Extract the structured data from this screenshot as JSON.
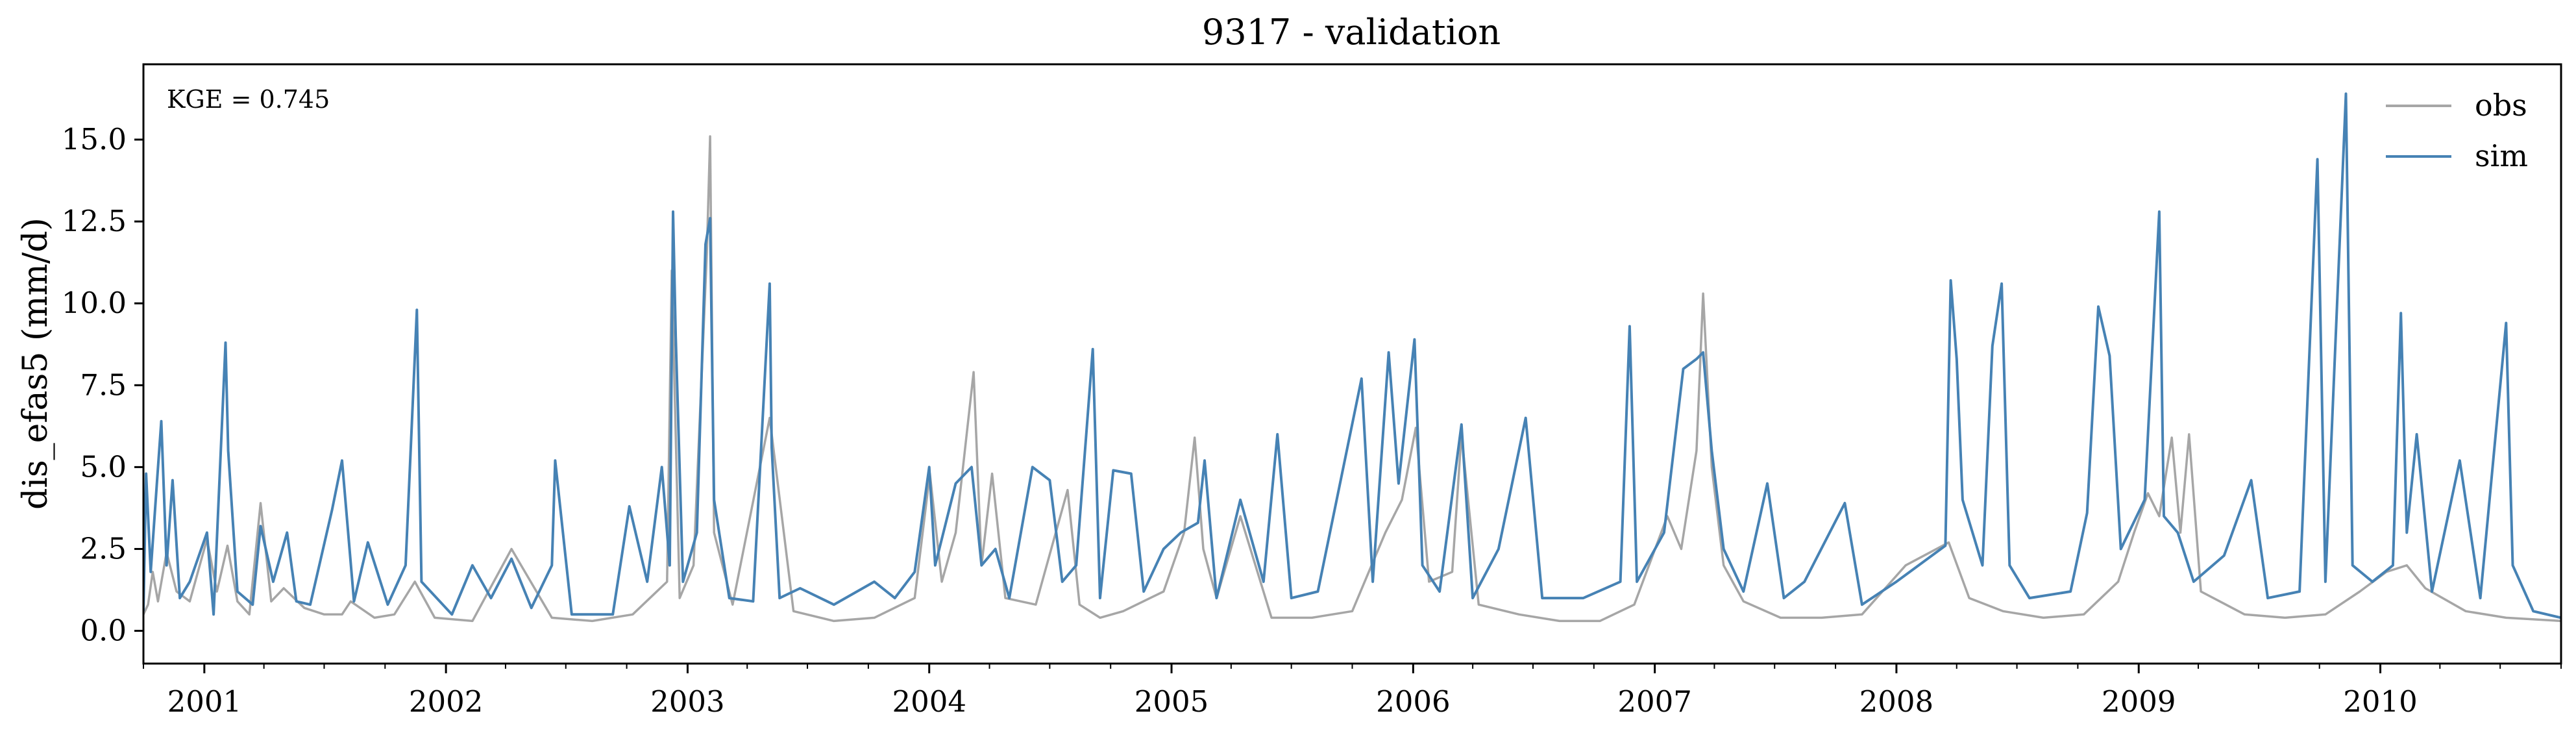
{
  "chart_data": {
    "type": "line",
    "title": "9317 - validation",
    "xlabel": "",
    "ylabel": "dis_efas5 (mm/d)",
    "annotation": "KGE = 0.745",
    "xlim": [
      "2000-10-01",
      "2010-10-01"
    ],
    "ylim": [
      -1.0,
      17.3
    ],
    "xticks": [
      "2001",
      "2002",
      "2003",
      "2004",
      "2005",
      "2006",
      "2007",
      "2008",
      "2009",
      "2010"
    ],
    "yticks": [
      "0.0",
      "2.5",
      "5.0",
      "7.5",
      "10.0",
      "12.5",
      "15.0"
    ],
    "legend": {
      "position": "top-right",
      "entries": [
        "obs",
        "sim"
      ]
    },
    "grid": false,
    "colors": {
      "obs": "#a6a6a6",
      "sim": "#4682b4"
    },
    "series": [
      {
        "name": "obs",
        "points": [
          [
            "2000-10-01",
            0.5
          ],
          [
            "2000-10-08",
            0.8
          ],
          [
            "2000-10-15",
            1.8
          ],
          [
            "2000-10-23",
            0.9
          ],
          [
            "2000-11-05",
            2.4
          ],
          [
            "2000-11-20",
            1.2
          ],
          [
            "2000-12-10",
            0.9
          ],
          [
            "2001-01-05",
            2.8
          ],
          [
            "2001-01-20",
            1.2
          ],
          [
            "2001-02-05",
            2.6
          ],
          [
            "2001-02-20",
            0.9
          ],
          [
            "2001-03-10",
            0.5
          ],
          [
            "2001-03-27",
            3.9
          ],
          [
            "2001-04-12",
            0.9
          ],
          [
            "2001-05-01",
            1.3
          ],
          [
            "2001-06-01",
            0.7
          ],
          [
            "2001-07-01",
            0.5
          ],
          [
            "2001-07-28",
            0.5
          ],
          [
            "2001-08-10",
            0.9
          ],
          [
            "2001-09-15",
            0.4
          ],
          [
            "2001-10-15",
            0.5
          ],
          [
            "2001-11-15",
            1.5
          ],
          [
            "2001-12-15",
            0.4
          ],
          [
            "2002-02-10",
            0.3
          ],
          [
            "2002-04-10",
            2.5
          ],
          [
            "2002-06-10",
            0.4
          ],
          [
            "2002-08-10",
            0.3
          ],
          [
            "2002-10-10",
            0.5
          ],
          [
            "2002-12-01",
            1.5
          ],
          [
            "2002-12-08",
            11.0
          ],
          [
            "2002-12-20",
            1.0
          ],
          [
            "2003-01-10",
            2.0
          ],
          [
            "2003-01-30",
            11.5
          ],
          [
            "2003-02-04",
            15.1
          ],
          [
            "2003-02-10",
            3.0
          ],
          [
            "2003-03-10",
            0.8
          ],
          [
            "2003-05-05",
            6.5
          ],
          [
            "2003-06-10",
            0.6
          ],
          [
            "2003-08-10",
            0.3
          ],
          [
            "2003-10-10",
            0.4
          ],
          [
            "2003-12-10",
            1.0
          ],
          [
            "2004-01-02",
            4.8
          ],
          [
            "2004-01-20",
            1.5
          ],
          [
            "2004-02-10",
            3.0
          ],
          [
            "2004-03-08",
            7.9
          ],
          [
            "2004-03-20",
            2.0
          ],
          [
            "2004-04-05",
            4.8
          ],
          [
            "2004-04-25",
            1.0
          ],
          [
            "2004-06-10",
            0.8
          ],
          [
            "2004-07-28",
            4.3
          ],
          [
            "2004-08-15",
            0.8
          ],
          [
            "2004-09-15",
            0.4
          ],
          [
            "2004-10-20",
            0.6
          ],
          [
            "2004-12-20",
            1.2
          ],
          [
            "2005-01-20",
            3.0
          ],
          [
            "2005-02-05",
            5.9
          ],
          [
            "2005-02-18",
            2.5
          ],
          [
            "2005-03-10",
            1.0
          ],
          [
            "2005-04-15",
            3.5
          ],
          [
            "2005-06-01",
            0.4
          ],
          [
            "2005-08-01",
            0.4
          ],
          [
            "2005-10-01",
            0.6
          ],
          [
            "2005-11-20",
            3.0
          ],
          [
            "2005-12-15",
            4.0
          ],
          [
            "2006-01-05",
            6.2
          ],
          [
            "2006-01-25",
            1.5
          ],
          [
            "2006-03-01",
            1.8
          ],
          [
            "2006-03-15",
            6.0
          ],
          [
            "2006-04-10",
            0.8
          ],
          [
            "2006-06-10",
            0.5
          ],
          [
            "2006-08-10",
            0.3
          ],
          [
            "2006-10-10",
            0.3
          ],
          [
            "2006-12-01",
            0.8
          ],
          [
            "2007-01-20",
            3.5
          ],
          [
            "2007-02-10",
            2.5
          ],
          [
            "2007-03-05",
            5.5
          ],
          [
            "2007-03-15",
            10.3
          ],
          [
            "2007-03-28",
            5.0
          ],
          [
            "2007-04-15",
            2.0
          ],
          [
            "2007-05-15",
            0.9
          ],
          [
            "2007-07-10",
            0.4
          ],
          [
            "2007-09-10",
            0.4
          ],
          [
            "2007-11-10",
            0.5
          ],
          [
            "2008-01-15",
            2.0
          ],
          [
            "2008-03-20",
            2.7
          ],
          [
            "2008-04-20",
            1.0
          ],
          [
            "2008-06-10",
            0.6
          ],
          [
            "2008-08-10",
            0.4
          ],
          [
            "2008-10-10",
            0.5
          ],
          [
            "2008-12-01",
            1.5
          ],
          [
            "2008-12-25",
            3.0
          ],
          [
            "2009-01-15",
            4.2
          ],
          [
            "2009-02-01",
            3.5
          ],
          [
            "2009-02-20",
            5.9
          ],
          [
            "2009-03-05",
            3.0
          ],
          [
            "2009-03-18",
            6.0
          ],
          [
            "2009-04-05",
            1.2
          ],
          [
            "2009-06-10",
            0.5
          ],
          [
            "2009-08-10",
            0.4
          ],
          [
            "2009-10-10",
            0.5
          ],
          [
            "2009-12-01",
            1.2
          ],
          [
            "2010-01-10",
            1.8
          ],
          [
            "2010-02-10",
            2.0
          ],
          [
            "2010-03-10",
            1.3
          ],
          [
            "2010-05-10",
            0.6
          ],
          [
            "2010-07-10",
            0.4
          ],
          [
            "2010-10-01",
            0.3
          ]
        ]
      },
      {
        "name": "sim",
        "points": [
          [
            "2000-10-01",
            0.6
          ],
          [
            "2000-10-05",
            4.8
          ],
          [
            "2000-10-12",
            1.8
          ],
          [
            "2000-10-22",
            4.7
          ],
          [
            "2000-10-28",
            6.4
          ],
          [
            "2000-11-05",
            2.0
          ],
          [
            "2000-11-14",
            4.6
          ],
          [
            "2000-11-25",
            1.0
          ],
          [
            "2000-12-10",
            1.5
          ],
          [
            "2001-01-05",
            3.0
          ],
          [
            "2001-01-15",
            0.5
          ],
          [
            "2001-02-02",
            8.8
          ],
          [
            "2001-02-06",
            5.5
          ],
          [
            "2001-02-20",
            1.2
          ],
          [
            "2001-03-15",
            0.8
          ],
          [
            "2001-03-27",
            3.2
          ],
          [
            "2001-04-15",
            1.5
          ],
          [
            "2001-05-06",
            3.0
          ],
          [
            "2001-05-20",
            0.9
          ],
          [
            "2001-06-10",
            0.8
          ],
          [
            "2001-07-13",
            3.7
          ],
          [
            "2001-07-28",
            5.2
          ],
          [
            "2001-08-15",
            0.9
          ],
          [
            "2001-09-05",
            2.7
          ],
          [
            "2001-10-05",
            0.8
          ],
          [
            "2001-11-01",
            2.0
          ],
          [
            "2001-11-18",
            9.8
          ],
          [
            "2001-11-25",
            1.5
          ],
          [
            "2002-01-10",
            0.5
          ],
          [
            "2002-02-10",
            2.0
          ],
          [
            "2002-03-10",
            1.0
          ],
          [
            "2002-04-10",
            2.2
          ],
          [
            "2002-05-10",
            0.7
          ],
          [
            "2002-06-10",
            2.0
          ],
          [
            "2002-06-15",
            5.2
          ],
          [
            "2002-07-10",
            0.5
          ],
          [
            "2002-09-10",
            0.5
          ],
          [
            "2002-10-05",
            3.8
          ],
          [
            "2002-11-01",
            1.5
          ],
          [
            "2002-11-23",
            5.0
          ],
          [
            "2002-12-05",
            2.0
          ],
          [
            "2002-12-10",
            12.8
          ],
          [
            "2002-12-14",
            9.0
          ],
          [
            "2002-12-25",
            1.5
          ],
          [
            "2003-01-15",
            3.0
          ],
          [
            "2003-01-28",
            11.8
          ],
          [
            "2003-02-04",
            12.6
          ],
          [
            "2003-02-10",
            4.0
          ],
          [
            "2003-03-05",
            1.0
          ],
          [
            "2003-04-10",
            0.9
          ],
          [
            "2003-05-05",
            10.6
          ],
          [
            "2003-05-08",
            5.6
          ],
          [
            "2003-05-20",
            1.0
          ],
          [
            "2003-06-20",
            1.3
          ],
          [
            "2003-08-10",
            0.8
          ],
          [
            "2003-10-10",
            1.5
          ],
          [
            "2003-11-10",
            1.0
          ],
          [
            "2003-12-10",
            1.8
          ],
          [
            "2004-01-01",
            5.0
          ],
          [
            "2004-01-10",
            2.0
          ],
          [
            "2004-02-10",
            4.5
          ],
          [
            "2004-03-05",
            5.0
          ],
          [
            "2004-03-20",
            2.0
          ],
          [
            "2004-04-10",
            2.5
          ],
          [
            "2004-05-01",
            1.0
          ],
          [
            "2004-06-05",
            5.0
          ],
          [
            "2004-07-01",
            4.6
          ],
          [
            "2004-07-20",
            1.5
          ],
          [
            "2004-08-10",
            2.0
          ],
          [
            "2004-09-04",
            8.6
          ],
          [
            "2004-09-15",
            1.0
          ],
          [
            "2004-10-05",
            4.9
          ],
          [
            "2004-11-01",
            4.8
          ],
          [
            "2004-11-20",
            1.2
          ],
          [
            "2004-12-20",
            2.5
          ],
          [
            "2005-01-15",
            3.0
          ],
          [
            "2005-02-10",
            3.3
          ],
          [
            "2005-02-20",
            5.2
          ],
          [
            "2005-03-10",
            1.0
          ],
          [
            "2005-04-15",
            4.0
          ],
          [
            "2005-05-20",
            1.5
          ],
          [
            "2005-06-10",
            6.0
          ],
          [
            "2005-07-01",
            1.0
          ],
          [
            "2005-08-10",
            1.2
          ],
          [
            "2005-10-15",
            7.7
          ],
          [
            "2005-11-01",
            1.5
          ],
          [
            "2005-11-25",
            8.5
          ],
          [
            "2005-12-10",
            4.5
          ],
          [
            "2006-01-03",
            8.9
          ],
          [
            "2006-01-15",
            2.0
          ],
          [
            "2006-02-10",
            1.2
          ],
          [
            "2006-03-15",
            6.3
          ],
          [
            "2006-04-01",
            1.0
          ],
          [
            "2006-05-10",
            2.5
          ],
          [
            "2006-06-20",
            6.5
          ],
          [
            "2006-07-15",
            1.0
          ],
          [
            "2006-09-15",
            1.0
          ],
          [
            "2006-11-10",
            1.5
          ],
          [
            "2006-11-24",
            9.3
          ],
          [
            "2006-12-05",
            1.5
          ],
          [
            "2007-01-15",
            3.0
          ],
          [
            "2007-02-13",
            8.0
          ],
          [
            "2007-03-05",
            8.3
          ],
          [
            "2007-03-15",
            8.5
          ],
          [
            "2007-03-28",
            5.5
          ],
          [
            "2007-04-15",
            2.5
          ],
          [
            "2007-05-15",
            1.2
          ],
          [
            "2007-06-20",
            4.5
          ],
          [
            "2007-07-15",
            1.0
          ],
          [
            "2007-08-15",
            1.5
          ],
          [
            "2007-10-15",
            3.9
          ],
          [
            "2007-11-10",
            0.8
          ],
          [
            "2008-01-01",
            1.5
          ],
          [
            "2008-03-15",
            2.6
          ],
          [
            "2008-03-23",
            10.7
          ],
          [
            "2008-04-01",
            8.3
          ],
          [
            "2008-04-10",
            4.0
          ],
          [
            "2008-05-10",
            2.0
          ],
          [
            "2008-05-25",
            8.7
          ],
          [
            "2008-06-08",
            10.6
          ],
          [
            "2008-06-20",
            2.0
          ],
          [
            "2008-07-20",
            1.0
          ],
          [
            "2008-09-20",
            1.2
          ],
          [
            "2008-10-15",
            3.6
          ],
          [
            "2008-11-01",
            9.9
          ],
          [
            "2008-11-18",
            8.4
          ],
          [
            "2008-12-05",
            2.5
          ],
          [
            "2009-01-10",
            4.0
          ],
          [
            "2009-02-01",
            12.8
          ],
          [
            "2009-02-08",
            3.5
          ],
          [
            "2009-03-01",
            3.0
          ],
          [
            "2009-03-25",
            1.5
          ],
          [
            "2009-05-10",
            2.3
          ],
          [
            "2009-06-20",
            4.6
          ],
          [
            "2009-07-15",
            1.0
          ],
          [
            "2009-09-01",
            1.2
          ],
          [
            "2009-09-28",
            14.4
          ],
          [
            "2009-10-10",
            1.5
          ],
          [
            "2009-11-10",
            16.4
          ],
          [
            "2009-11-20",
            2.0
          ],
          [
            "2009-12-20",
            1.5
          ],
          [
            "2010-01-20",
            2.0
          ],
          [
            "2010-02-01",
            9.7
          ],
          [
            "2010-02-10",
            3.0
          ],
          [
            "2010-02-25",
            6.0
          ],
          [
            "2010-03-20",
            1.2
          ],
          [
            "2010-05-01",
            5.2
          ],
          [
            "2010-06-01",
            1.0
          ],
          [
            "2010-07-10",
            9.4
          ],
          [
            "2010-07-20",
            2.0
          ],
          [
            "2010-08-20",
            0.6
          ],
          [
            "2010-10-01",
            0.4
          ]
        ]
      }
    ]
  }
}
